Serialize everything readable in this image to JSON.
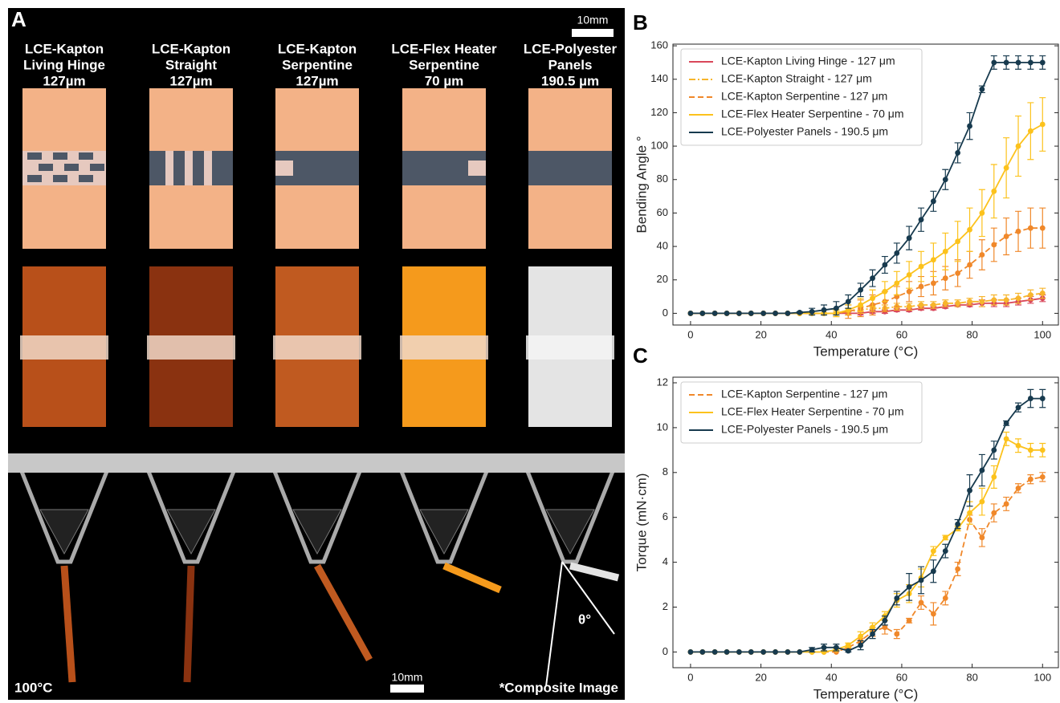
{
  "panel_a": {
    "letter": "A",
    "columns": [
      {
        "lines": [
          "LCE-Kapton",
          "Living Hinge",
          "127µm"
        ]
      },
      {
        "lines": [
          "LCE-Kapton",
          "Straight",
          "127µm"
        ]
      },
      {
        "lines": [
          "LCE-Kapton",
          "Serpentine",
          "127µm"
        ]
      },
      {
        "lines": [
          "LCE-Flex Heater",
          "Serpentine",
          "70 µm"
        ]
      },
      {
        "lines": [
          "LCE-Polyester",
          "Panels",
          "190.5 µm"
        ]
      }
    ],
    "scale_top": "10mm",
    "scale_bottom": "10mm",
    "temperature": "100°C",
    "note": "*Composite Image",
    "angle": "θ°"
  },
  "chart_data": [
    {
      "type": "line",
      "panel": "B",
      "x_label": "Temperature (°C)",
      "y_label": "Bending Angle °",
      "x": [
        0,
        3.4,
        6.9,
        10.3,
        13.8,
        17.2,
        20.7,
        24.1,
        27.6,
        31.0,
        34.5,
        37.9,
        41.4,
        44.8,
        48.3,
        51.7,
        55.2,
        58.6,
        62.1,
        65.5,
        69.0,
        72.4,
        75.9,
        79.3,
        82.8,
        86.2,
        89.7,
        93.1,
        96.6,
        100
      ],
      "xlim": [
        -5,
        104.5
      ],
      "xticks": [
        0,
        20,
        40,
        60,
        80,
        100
      ],
      "ylim": [
        -7,
        161
      ],
      "yticks": [
        0,
        20,
        40,
        60,
        80,
        100,
        120,
        140,
        160
      ],
      "legend": "upper left",
      "series": [
        {
          "name": "LCE-Kapton Living Hinge - 127 μm",
          "color": "#d9475a",
          "dash": "solid",
          "values": [
            0,
            0,
            0,
            0,
            0,
            0,
            0,
            0,
            0,
            0,
            0,
            0,
            0,
            0,
            0,
            1,
            1,
            2,
            2,
            3,
            3,
            4,
            5,
            5,
            6,
            6,
            6,
            7,
            8,
            9
          ],
          "errors": [
            0,
            0,
            0,
            0,
            0,
            0,
            0,
            0,
            0,
            0,
            0,
            0,
            0,
            1,
            1,
            1,
            1,
            1,
            1,
            1,
            1,
            1,
            1,
            1,
            2,
            2,
            2,
            2,
            2,
            2
          ]
        },
        {
          "name": "LCE-Kapton Straight - 127 μm",
          "color": "#f7b52c",
          "dash": "dashdot",
          "values": [
            0,
            0,
            0,
            0,
            0,
            0,
            0,
            0,
            0,
            0,
            0,
            0,
            0,
            1,
            2,
            3,
            3,
            4,
            4,
            5,
            5,
            6,
            6,
            7,
            7,
            8,
            8,
            9,
            11,
            12
          ],
          "errors": [
            0,
            0,
            0,
            0,
            0,
            0,
            0,
            0,
            0,
            0,
            0,
            0,
            1,
            2,
            2,
            2,
            2,
            2,
            2,
            2,
            2,
            2,
            2,
            2,
            3,
            3,
            3,
            3,
            3,
            3
          ]
        },
        {
          "name": "LCE-Kapton Serpentine - 127 μm",
          "color": "#f0882a",
          "dash": "dashed",
          "values": [
            0,
            0,
            0,
            0,
            0,
            0,
            0,
            0,
            0,
            0,
            0,
            0,
            0,
            1,
            3,
            5,
            7,
            10,
            13,
            16,
            18,
            21,
            24,
            29,
            35,
            41,
            46,
            49,
            51,
            51
          ],
          "errors": [
            0,
            0,
            0,
            0,
            0,
            0,
            0,
            0,
            0,
            0,
            0,
            0,
            2,
            4,
            5,
            6,
            6,
            6,
            6,
            6,
            7,
            7,
            8,
            8,
            9,
            10,
            11,
            12,
            12,
            12
          ]
        },
        {
          "name": "LCE-Flex Heater Serpentine - 70 μm",
          "color": "#fcc21c",
          "dash": "solid",
          "values": [
            0,
            0,
            0,
            0,
            0,
            0,
            0,
            0,
            0,
            0,
            0,
            0,
            0,
            2,
            5,
            9,
            13,
            18,
            23,
            28,
            32,
            37,
            43,
            50,
            60,
            73,
            87,
            100,
            109,
            113
          ],
          "errors": [
            0,
            0,
            0,
            0,
            0,
            0,
            0,
            0,
            0,
            0,
            0,
            0,
            2,
            3,
            4,
            5,
            6,
            7,
            8,
            9,
            10,
            11,
            12,
            13,
            14,
            16,
            18,
            18,
            17,
            16
          ]
        },
        {
          "name": "LCE-Polyester Panels - 190.5 μm",
          "color": "#173a4e",
          "dash": "solid",
          "values": [
            0,
            0,
            0,
            0,
            0,
            0,
            0,
            0,
            0,
            0.5,
            1,
            2,
            3,
            7,
            14,
            21,
            29,
            36,
            45,
            56,
            67,
            80,
            96,
            112,
            134,
            150,
            150,
            150,
            150,
            150
          ],
          "errors": [
            0,
            0,
            0,
            0,
            0,
            0,
            0,
            0,
            0,
            0.5,
            2,
            3,
            4,
            4,
            4,
            5,
            5,
            6,
            7,
            7,
            6,
            6,
            6,
            8,
            2,
            4,
            4,
            4,
            4,
            4
          ]
        }
      ]
    },
    {
      "type": "line",
      "panel": "C",
      "x_label": "Temperature (°C)",
      "y_label": "Torque (mN·cm)",
      "x": [
        0,
        3.4,
        6.9,
        10.3,
        13.8,
        17.2,
        20.7,
        24.1,
        27.6,
        31.0,
        34.5,
        37.9,
        41.4,
        44.8,
        48.3,
        51.7,
        55.2,
        58.6,
        62.1,
        65.5,
        69.0,
        72.4,
        75.9,
        79.3,
        82.8,
        86.2,
        89.7,
        93.1,
        96.6,
        100
      ],
      "xlim": [
        -5,
        104.5
      ],
      "xticks": [
        0,
        20,
        40,
        60,
        80,
        100
      ],
      "ylim": [
        -0.7,
        12.25
      ],
      "yticks": [
        0,
        2,
        4,
        6,
        8,
        10,
        12
      ],
      "legend": "upper left",
      "series": [
        {
          "name": "LCE-Kapton Serpentine - 127 μm",
          "color": "#f0882a",
          "dash": "dashed",
          "values": [
            0,
            0,
            0,
            0,
            0,
            0,
            0,
            0,
            0,
            0,
            0,
            0,
            0,
            0.2,
            0.5,
            0.9,
            1.1,
            0.8,
            1.4,
            2.2,
            1.7,
            2.4,
            3.7,
            5.9,
            5.1,
            6.2,
            6.6,
            7.3,
            7.7,
            7.8
          ],
          "errors": [
            0,
            0,
            0,
            0,
            0,
            0,
            0,
            0,
            0,
            0,
            0,
            0,
            0,
            0.05,
            0.1,
            0.2,
            0.3,
            0.2,
            0.1,
            0.3,
            0.5,
            0.3,
            0.3,
            0.2,
            0.4,
            0.4,
            0.3,
            0.2,
            0.2,
            0.2
          ]
        },
        {
          "name": "LCE-Flex Heater Serpentine - 70 μm",
          "color": "#fcc21c",
          "dash": "solid",
          "values": [
            0,
            0,
            0,
            0,
            0,
            0,
            0,
            0,
            0,
            0,
            0,
            0,
            0.1,
            0.3,
            0.7,
            1.1,
            1.6,
            2.3,
            2.6,
            3.3,
            4.5,
            5.1,
            5.5,
            6.2,
            6.7,
            7.8,
            9.5,
            9.2,
            9.0,
            9.0
          ],
          "errors": [
            0,
            0,
            0,
            0,
            0,
            0,
            0,
            0,
            0,
            0,
            0,
            0,
            0.05,
            0.1,
            0.2,
            0.2,
            0.2,
            0.3,
            0.4,
            0.4,
            0.2,
            0.1,
            0.1,
            0.5,
            0.6,
            0.5,
            0.3,
            0.3,
            0.3,
            0.3
          ]
        },
        {
          "name": "LCE-Polyester Panels - 190.5 μm",
          "color": "#173a4e",
          "dash": "solid",
          "values": [
            0,
            0,
            0,
            0,
            0,
            0,
            0,
            0,
            0,
            0,
            0.1,
            0.2,
            0.2,
            0.05,
            0.3,
            0.8,
            1.4,
            2.4,
            2.9,
            3.2,
            3.6,
            4.5,
            5.7,
            7.2,
            8.1,
            9,
            10.2,
            10.9,
            11.3,
            11.3
          ],
          "errors": [
            0,
            0,
            0,
            0,
            0,
            0,
            0,
            0,
            0,
            0,
            0.1,
            0.15,
            0.15,
            0.05,
            0.2,
            0.2,
            0.2,
            0.3,
            0.6,
            0.6,
            0.5,
            0.3,
            0.2,
            0.7,
            0.7,
            0.4,
            0.1,
            0.2,
            0.4,
            0.4
          ]
        }
      ]
    }
  ]
}
